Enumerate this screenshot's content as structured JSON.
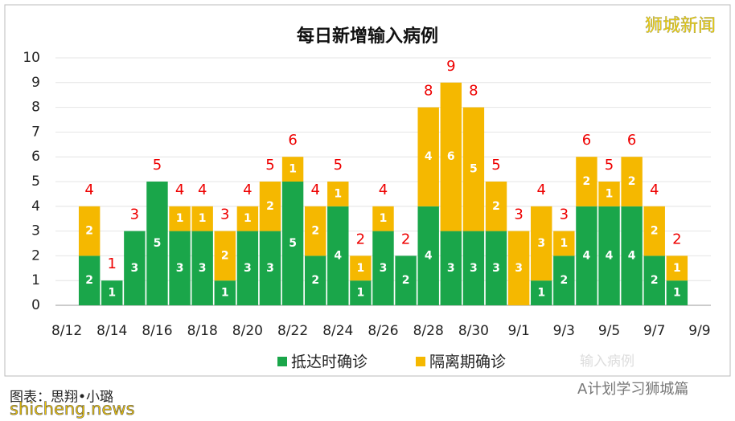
{
  "chart_data": {
    "type": "stacked_bar",
    "title": "每日新增输入病例",
    "categories": [
      "8/12",
      null,
      "8/14",
      null,
      "8/16",
      null,
      "8/18",
      null,
      "8/20",
      null,
      "8/22",
      null,
      "8/24",
      null,
      "8/26",
      null,
      "8/28",
      null,
      "8/30",
      null,
      "9/1",
      null,
      "9/3",
      null,
      "9/5",
      null,
      "9/7",
      null,
      "9/9"
    ],
    "series": [
      {
        "name": "抵达时确诊",
        "color": "#1aa64a",
        "values": [
          null,
          2,
          1,
          3,
          5,
          3,
          3,
          1,
          3,
          3,
          5,
          2,
          4,
          1,
          3,
          2,
          4,
          3,
          3,
          3,
          0,
          1,
          2,
          4,
          4,
          4,
          2,
          1,
          null
        ]
      },
      {
        "name": "隔离期确诊",
        "color": "#f5b800",
        "values": [
          null,
          2,
          0,
          0,
          0,
          1,
          1,
          2,
          1,
          2,
          1,
          2,
          1,
          1,
          1,
          0,
          4,
          6,
          5,
          2,
          3,
          3,
          1,
          2,
          1,
          2,
          2,
          1,
          null
        ]
      }
    ],
    "totals": [
      null,
      4,
      1,
      3,
      5,
      4,
      4,
      3,
      4,
      5,
      6,
      4,
      5,
      2,
      4,
      2,
      8,
      9,
      8,
      5,
      3,
      4,
      3,
      6,
      5,
      6,
      4,
      2,
      null
    ],
    "ylim": [
      0,
      10
    ],
    "yticks": [
      0,
      1,
      2,
      3,
      4,
      5,
      6,
      7,
      8,
      9,
      10
    ],
    "grid": true,
    "annotations": [
      "狮城新闻",
      "输入病例",
      "图表：思翔•小璐",
      "shicheng.news",
      "A计划学习狮城篇"
    ]
  }
}
